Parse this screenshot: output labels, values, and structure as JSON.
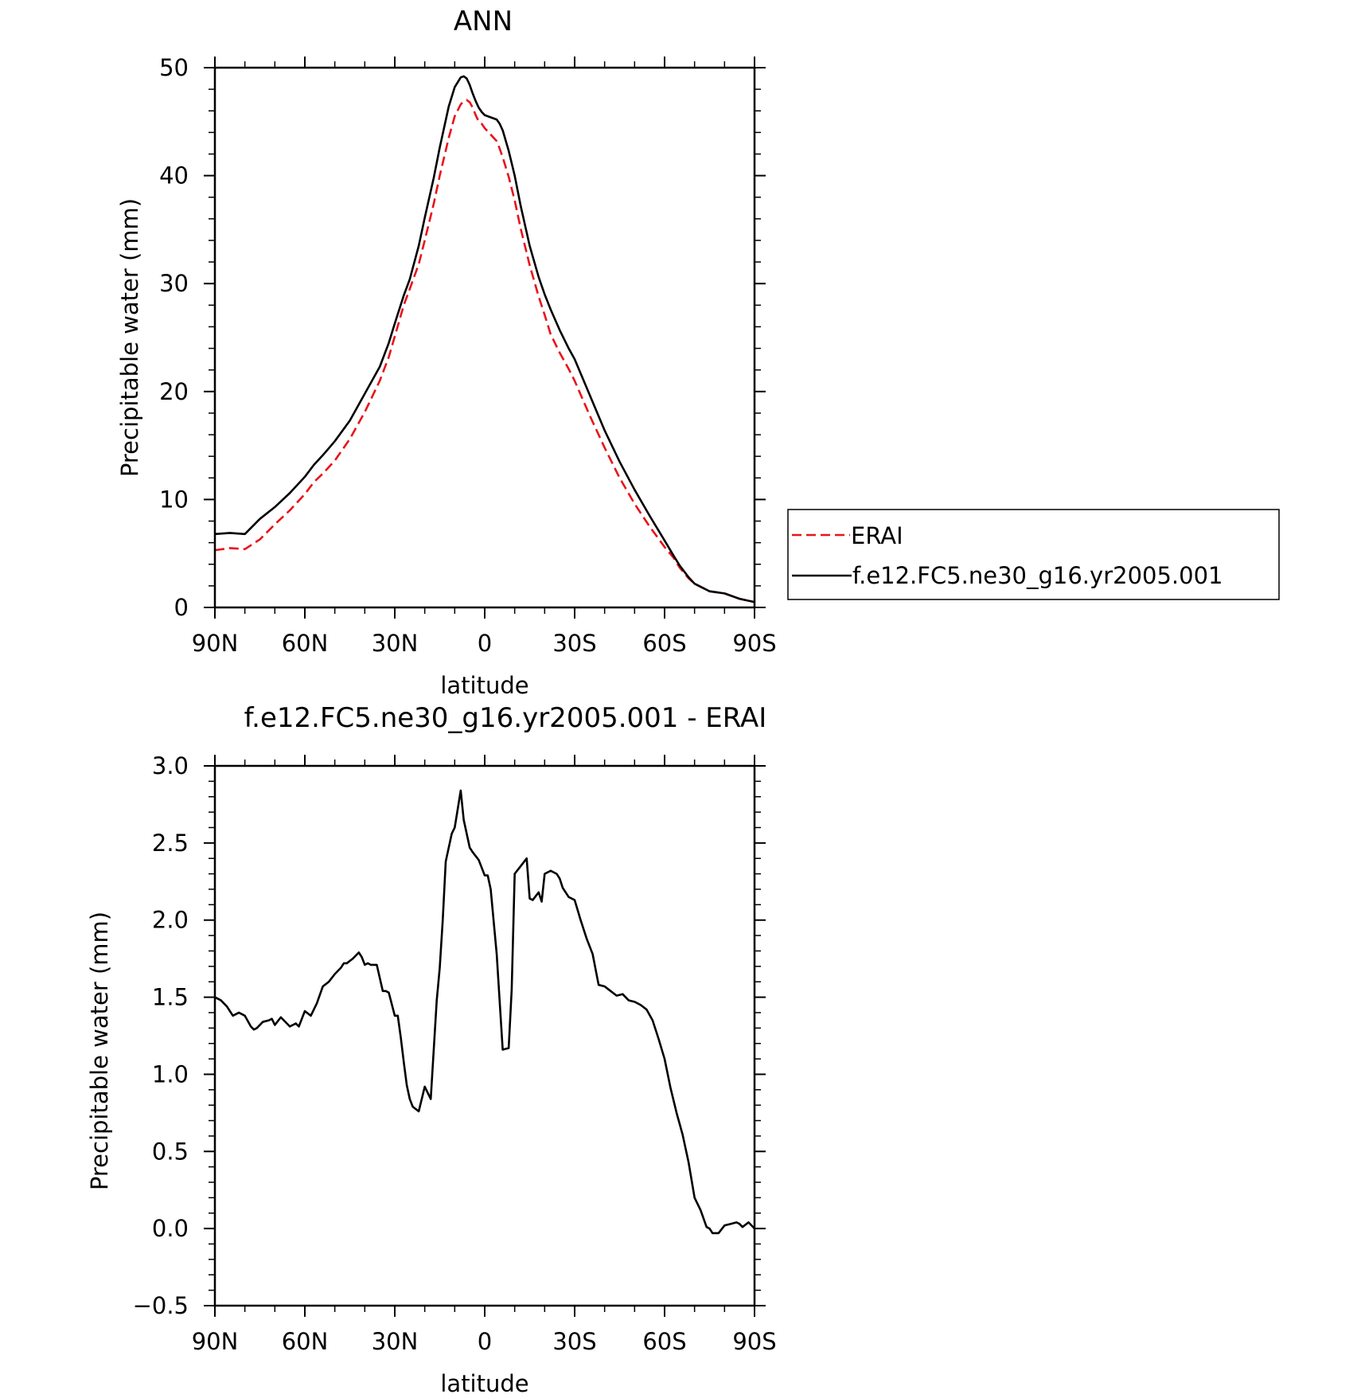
{
  "chart_data": [
    {
      "type": "line",
      "title": "ANN",
      "xlabel": "latitude",
      "ylabel": "Precipitable water (mm)",
      "xlim": [
        -90,
        90
      ],
      "ylim": [
        0,
        50
      ],
      "x_ticks": [
        {
          "value": -90,
          "label": "90N"
        },
        {
          "value": -60,
          "label": "60N"
        },
        {
          "value": -30,
          "label": "30N"
        },
        {
          "value": 0,
          "label": "0"
        },
        {
          "value": 30,
          "label": "30S"
        },
        {
          "value": 60,
          "label": "60S"
        },
        {
          "value": 90,
          "label": "90S"
        }
      ],
      "y_ticks": [
        {
          "value": 0,
          "label": "0"
        },
        {
          "value": 10,
          "label": "10"
        },
        {
          "value": 20,
          "label": "20"
        },
        {
          "value": 30,
          "label": "30"
        },
        {
          "value": 40,
          "label": "40"
        },
        {
          "value": 50,
          "label": "50"
        }
      ],
      "legend_position": "right",
      "series": [
        {
          "name": "ERAI",
          "color": "#e8141b",
          "style": "dashed",
          "x": [
            -90,
            -85,
            -80,
            -75,
            -70,
            -65,
            -60,
            -57,
            -54,
            -50,
            -45,
            -40,
            -35,
            -32,
            -30,
            -27,
            -25,
            -22,
            -20,
            -17,
            -15,
            -12,
            -10,
            -8,
            -7,
            -6,
            -5,
            -4,
            -3,
            -2,
            -1,
            0,
            2,
            4,
            5,
            6,
            8,
            10,
            12,
            15,
            18,
            20,
            22,
            25,
            28,
            30,
            35,
            40,
            45,
            50,
            55,
            60,
            63,
            65,
            68,
            70,
            75,
            80,
            85,
            90
          ],
          "values": [
            5.3,
            5.5,
            5.4,
            6.3,
            7.7,
            9.0,
            10.5,
            11.6,
            12.4,
            13.6,
            15.6,
            18.1,
            21.0,
            23.2,
            25.1,
            28.0,
            29.5,
            31.8,
            34.0,
            37.4,
            40.0,
            43.5,
            45.5,
            46.6,
            46.9,
            47.0,
            46.8,
            46.3,
            45.6,
            45.0,
            44.8,
            44.4,
            43.8,
            43.2,
            42.5,
            41.7,
            39.9,
            37.7,
            35.1,
            31.7,
            28.8,
            27.1,
            25.3,
            23.6,
            22.1,
            21.0,
            17.8,
            14.8,
            12.0,
            9.6,
            7.5,
            5.6,
            4.6,
            3.7,
            2.7,
            2.2,
            1.5,
            1.3,
            0.8,
            0.5
          ]
        },
        {
          "name": "f.e12.FC5.ne30_g16.yr2005.001",
          "color": "#000000",
          "style": "solid",
          "x": [
            -90,
            -85,
            -80,
            -75,
            -70,
            -65,
            -60,
            -57,
            -54,
            -50,
            -45,
            -40,
            -35,
            -32,
            -30,
            -27,
            -25,
            -22,
            -20,
            -17,
            -15,
            -12,
            -10,
            -8,
            -7,
            -6,
            -5,
            -4,
            -3,
            -2,
            -1,
            0,
            2,
            4,
            5,
            6,
            8,
            10,
            12,
            15,
            18,
            20,
            22,
            25,
            28,
            30,
            35,
            40,
            45,
            50,
            55,
            60,
            63,
            65,
            68,
            70,
            75,
            80,
            85,
            90
          ],
          "values": [
            6.8,
            6.9,
            6.8,
            8.2,
            9.3,
            10.6,
            12.1,
            13.2,
            14.1,
            15.4,
            17.3,
            19.8,
            22.3,
            24.5,
            26.3,
            28.9,
            30.4,
            33.5,
            36.1,
            39.8,
            42.6,
            46.4,
            48.2,
            49.1,
            49.2,
            49.0,
            48.4,
            47.6,
            46.9,
            46.3,
            45.9,
            45.6,
            45.4,
            45.2,
            44.8,
            44.2,
            42.3,
            40.0,
            37.2,
            33.5,
            30.6,
            29.0,
            27.6,
            25.7,
            24.0,
            23.0,
            19.7,
            16.4,
            13.5,
            10.9,
            8.5,
            6.2,
            4.8,
            3.9,
            2.8,
            2.2,
            1.5,
            1.3,
            0.8,
            0.5
          ]
        }
      ]
    },
    {
      "type": "line",
      "title": "f.e12.FC5.ne30_g16.yr2005.001 - ERAI",
      "xlabel": "latitude",
      "ylabel": "Precipitable water (mm)",
      "xlim": [
        -90,
        90
      ],
      "ylim": [
        -0.5,
        3.0
      ],
      "x_ticks": [
        {
          "value": -90,
          "label": "90N"
        },
        {
          "value": -60,
          "label": "60N"
        },
        {
          "value": -30,
          "label": "30N"
        },
        {
          "value": 0,
          "label": "0"
        },
        {
          "value": 30,
          "label": "30S"
        },
        {
          "value": 60,
          "label": "60S"
        },
        {
          "value": 90,
          "label": "90S"
        }
      ],
      "y_ticks": [
        {
          "value": -0.5,
          "label": "−0.5"
        },
        {
          "value": 0.0,
          "label": "0.0"
        },
        {
          "value": 0.5,
          "label": "0.5"
        },
        {
          "value": 1.0,
          "label": "1.0"
        },
        {
          "value": 1.5,
          "label": "1.5"
        },
        {
          "value": 2.0,
          "label": "2.0"
        },
        {
          "value": 2.5,
          "label": "2.5"
        },
        {
          "value": 3.0,
          "label": "3.0"
        }
      ],
      "series": [
        {
          "color": "#000000",
          "style": "solid",
          "x": [
            -90,
            -88,
            -86,
            -84,
            -82,
            -80,
            -78,
            -77,
            -76,
            -74,
            -72,
            -71,
            -70,
            -68,
            -66,
            -65,
            -63,
            -62,
            -60,
            -58,
            -57,
            -56,
            -54,
            -52,
            -50,
            -48,
            -47,
            -46,
            -44,
            -42,
            -41,
            -40,
            -39,
            -38,
            -36,
            -34,
            -33,
            -32,
            -30,
            -29,
            -28,
            -27,
            -26,
            -25,
            -24,
            -22,
            -20,
            -18,
            -16,
            -15,
            -14,
            -13,
            -11,
            -10,
            -8,
            -7,
            -5,
            -4,
            -2,
            0,
            1,
            2,
            4,
            6,
            8,
            9,
            10,
            12,
            14,
            15,
            16,
            18,
            19,
            20,
            22,
            24,
            25,
            26,
            28,
            30,
            32,
            34,
            36,
            38,
            40,
            42,
            44,
            46,
            48,
            50,
            52,
            54,
            56,
            58,
            60,
            62,
            64,
            66,
            68,
            70,
            72,
            74,
            75,
            76,
            78,
            80,
            82,
            84,
            85,
            86,
            88,
            90
          ],
          "values": [
            1.5,
            1.48,
            1.44,
            1.38,
            1.4,
            1.38,
            1.31,
            1.29,
            1.3,
            1.34,
            1.35,
            1.36,
            1.32,
            1.37,
            1.33,
            1.31,
            1.33,
            1.31,
            1.41,
            1.38,
            1.42,
            1.46,
            1.57,
            1.6,
            1.65,
            1.69,
            1.72,
            1.72,
            1.75,
            1.79,
            1.76,
            1.71,
            1.72,
            1.71,
            1.71,
            1.54,
            1.54,
            1.53,
            1.38,
            1.38,
            1.24,
            1.08,
            0.93,
            0.84,
            0.79,
            0.76,
            0.92,
            0.84,
            1.48,
            1.69,
            2.0,
            2.38,
            2.56,
            2.6,
            2.84,
            2.65,
            2.47,
            2.44,
            2.39,
            2.29,
            2.29,
            2.2,
            1.78,
            1.16,
            1.17,
            1.55,
            2.3,
            2.35,
            2.4,
            2.14,
            2.13,
            2.18,
            2.12,
            2.3,
            2.32,
            2.3,
            2.27,
            2.21,
            2.15,
            2.13,
            2.0,
            1.88,
            1.78,
            1.58,
            1.57,
            1.54,
            1.51,
            1.52,
            1.48,
            1.47,
            1.45,
            1.42,
            1.35,
            1.23,
            1.1,
            0.91,
            0.75,
            0.61,
            0.43,
            0.2,
            0.12,
            0.01,
            0.0,
            -0.03,
            -0.03,
            0.02,
            0.03,
            0.04,
            0.03,
            0.01,
            0.04,
            0.0
          ]
        }
      ]
    }
  ]
}
